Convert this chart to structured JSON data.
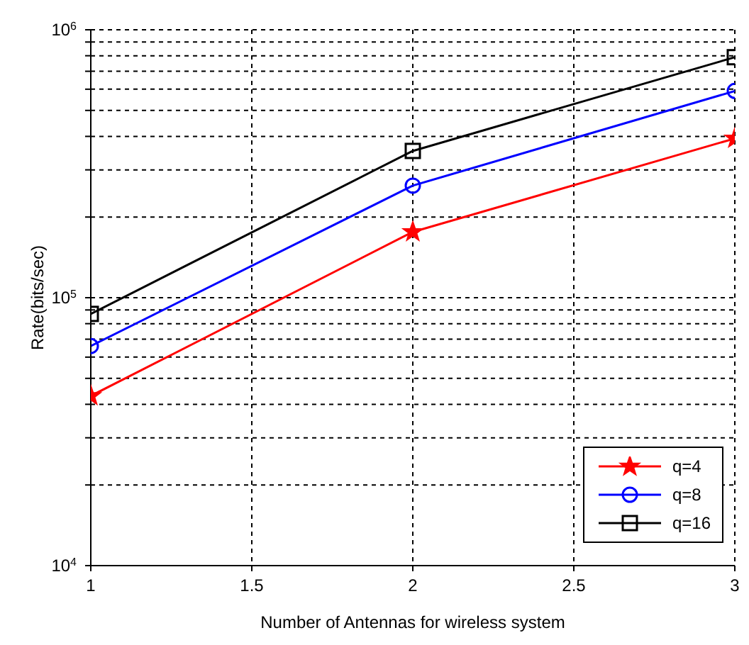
{
  "chart_data": {
    "type": "line",
    "xlabel": "Number of Antennas for wireless system",
    "ylabel": "Rate(bits/sec)",
    "x": [
      1,
      2,
      3
    ],
    "series": [
      {
        "name": "q=4",
        "color": "#ff0000",
        "marker": "star",
        "values": [
          43000,
          176000,
          393000
        ]
      },
      {
        "name": "q=8",
        "color": "#0000ff",
        "marker": "circle",
        "values": [
          66000,
          262000,
          591000
        ]
      },
      {
        "name": "q=16",
        "color": "#000000",
        "marker": "square",
        "values": [
          87000,
          353000,
          790000
        ]
      }
    ],
    "log": "y",
    "xlim": [
      1,
      3
    ],
    "xticks": [
      1,
      1.5,
      2,
      2.5,
      3
    ],
    "ylim": [
      10000,
      1000000
    ],
    "yticks": [
      {
        "value": 10000,
        "label": "10$^{4}$"
      },
      {
        "value": 20000,
        "label": null
      },
      {
        "value": 30000,
        "label": null
      },
      {
        "value": 40000,
        "label": null
      },
      {
        "value": 50000,
        "label": null
      },
      {
        "value": 60000,
        "label": null
      },
      {
        "value": 70000,
        "label": null
      },
      {
        "value": 80000,
        "label": null
      },
      {
        "value": 90000,
        "label": null
      },
      {
        "value": 100000,
        "label": "10$^{5}$"
      },
      {
        "value": 200000,
        "label": null
      },
      {
        "value": 300000,
        "label": null
      },
      {
        "value": 400000,
        "label": null
      },
      {
        "value": 500000,
        "label": null
      },
      {
        "value": 600000,
        "label": null
      },
      {
        "value": 700000,
        "label": null
      },
      {
        "value": 800000,
        "label": null
      },
      {
        "value": 900000,
        "label": null
      },
      {
        "value": 1000000,
        "label": "10$^{6}$"
      }
    ],
    "grid": true,
    "legend": "bottom right",
    "line_style": "solid"
  }
}
